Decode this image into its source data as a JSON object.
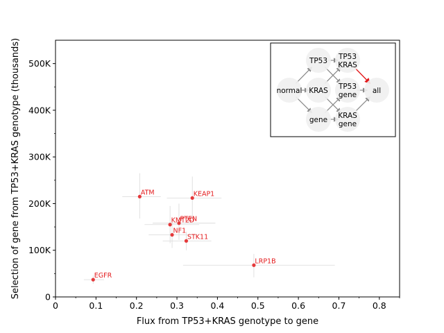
{
  "chart_data": {
    "type": "scatter",
    "xlabel": "Flux from TP53+KRAS genotype to gene",
    "ylabel": "Selection of gene from TP53+KRAS genotype (thousands)",
    "xlim": [
      0,
      0.85
    ],
    "ylim": [
      0,
      550000
    ],
    "xticks": [
      {
        "value": 0,
        "label": "0"
      },
      {
        "value": 0.1,
        "label": "0.1"
      },
      {
        "value": 0.2,
        "label": "0.2"
      },
      {
        "value": 0.3,
        "label": "0.3"
      },
      {
        "value": 0.4,
        "label": "0.4"
      },
      {
        "value": 0.5,
        "label": "0.5"
      },
      {
        "value": 0.6,
        "label": "0.6"
      },
      {
        "value": 0.7,
        "label": "0.7"
      },
      {
        "value": 0.8,
        "label": "0.8"
      }
    ],
    "yticks": [
      {
        "value": 0,
        "label": "0"
      },
      {
        "value": 100000,
        "label": "100K"
      },
      {
        "value": 200000,
        "label": "200K"
      },
      {
        "value": 300000,
        "label": "300K"
      },
      {
        "value": 400000,
        "label": "400K"
      },
      {
        "value": 500000,
        "label": "500K"
      }
    ],
    "grid": false,
    "point_color": "#e31a1c",
    "errorbar_color": "#d9d9d9",
    "points": [
      {
        "label": "ATM",
        "x": 0.208,
        "y": 215000,
        "x_err": [
          0.165,
          0.26
        ],
        "y_err": [
          168000,
          265000
        ]
      },
      {
        "label": "KEAP1",
        "x": 0.338,
        "y": 212000,
        "x_err": [
          0.275,
          0.41
        ],
        "y_err": [
          168000,
          258000
        ]
      },
      {
        "label": "KMT2D",
        "x": 0.283,
        "y": 155000,
        "x_err": [
          0.22,
          0.355
        ],
        "y_err": [
          115000,
          195000
        ]
      },
      {
        "label": "PTEN",
        "x": 0.305,
        "y": 158000,
        "x_err": [
          0.24,
          0.395
        ],
        "y_err": [
          122000,
          200000
        ]
      },
      {
        "label": "NF1",
        "x": 0.288,
        "y": 133000,
        "x_err": [
          0.23,
          0.35
        ],
        "y_err": [
          105000,
          162000
        ]
      },
      {
        "label": "STK11",
        "x": 0.323,
        "y": 120000,
        "x_err": [
          0.265,
          0.385
        ],
        "y_err": [
          100000,
          140000
        ]
      },
      {
        "label": "LRP1B",
        "x": 0.49,
        "y": 68000,
        "x_err": [
          0.315,
          0.69
        ],
        "y_err": [
          42000,
          92000
        ]
      },
      {
        "label": "EGFR",
        "x": 0.093,
        "y": 37000,
        "x_err": [
          0.07,
          0.12
        ],
        "y_err": [
          28000,
          46000
        ]
      }
    ]
  },
  "inset": {
    "nodes": [
      {
        "id": "normal",
        "lines": [
          "normal"
        ]
      },
      {
        "id": "tp53",
        "lines": [
          "TP53"
        ]
      },
      {
        "id": "kras",
        "lines": [
          "KRAS"
        ]
      },
      {
        "id": "gene",
        "lines": [
          "gene"
        ]
      },
      {
        "id": "tp53kras",
        "lines": [
          "TP53",
          "KRAS"
        ]
      },
      {
        "id": "tp53gene",
        "lines": [
          "TP53",
          "gene"
        ]
      },
      {
        "id": "krasgene",
        "lines": [
          "KRAS",
          "gene"
        ]
      },
      {
        "id": "all",
        "lines": [
          "all"
        ]
      }
    ],
    "edges": [
      {
        "from": "normal",
        "to": "tp53",
        "highlight": false
      },
      {
        "from": "normal",
        "to": "kras",
        "highlight": false
      },
      {
        "from": "normal",
        "to": "gene",
        "highlight": false
      },
      {
        "from": "tp53",
        "to": "tp53kras",
        "highlight": false
      },
      {
        "from": "tp53",
        "to": "tp53gene",
        "highlight": false
      },
      {
        "from": "kras",
        "to": "tp53kras",
        "highlight": false
      },
      {
        "from": "kras",
        "to": "krasgene",
        "highlight": false
      },
      {
        "from": "gene",
        "to": "tp53gene",
        "highlight": false
      },
      {
        "from": "gene",
        "to": "krasgene",
        "highlight": false
      },
      {
        "from": "tp53kras",
        "to": "all",
        "highlight": true
      },
      {
        "from": "tp53gene",
        "to": "all",
        "highlight": false
      },
      {
        "from": "krasgene",
        "to": "all",
        "highlight": false
      }
    ],
    "node_fill": "#f0f0f0",
    "edge_color": "#888888",
    "highlight_color": "#e31a1c"
  }
}
